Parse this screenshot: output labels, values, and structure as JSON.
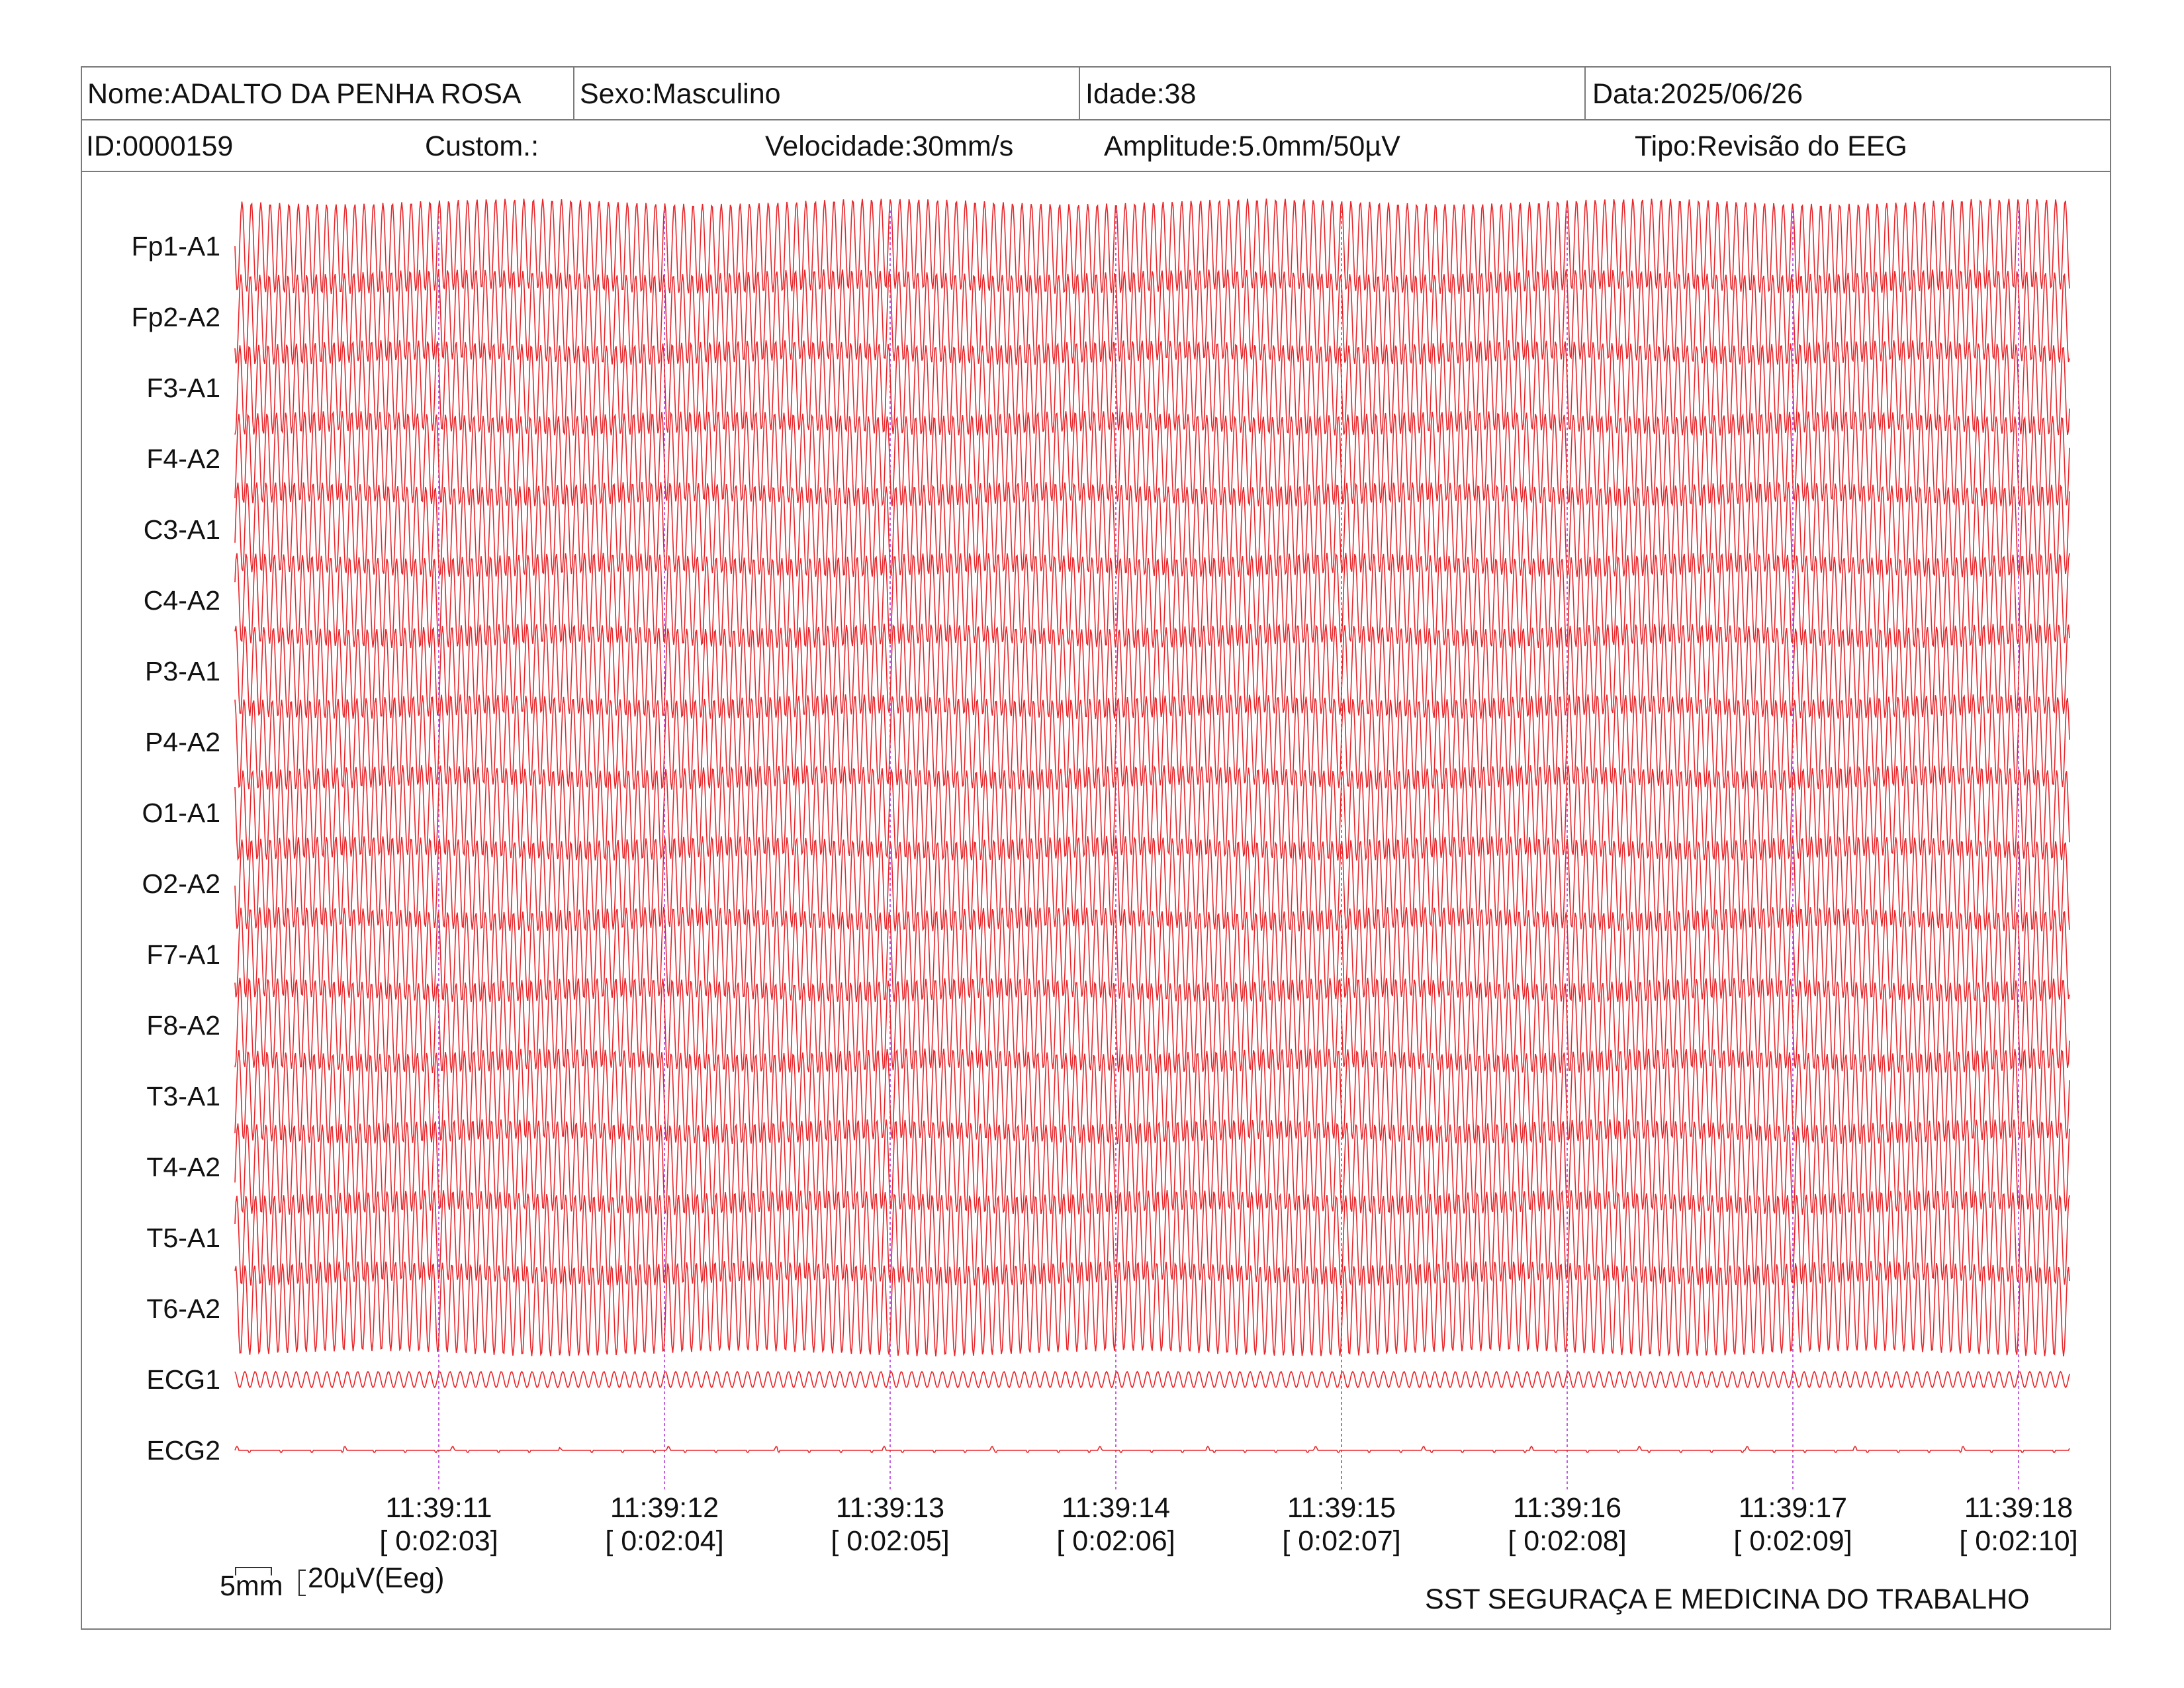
{
  "header": {
    "name": "Nome:ADALTO DA PENHA ROSA",
    "sex": "Sexo:Masculino",
    "age": "Idade:38",
    "date": "Data:2025/06/26",
    "id": "ID:0000159",
    "custom": "Custom.:",
    "speed": "Velocidade:30mm/s",
    "amplitude": "Amplitude:5.0mm/50µV",
    "type": "Tipo:Revisão do EEG"
  },
  "channels": [
    "Fp1-A1",
    "Fp2-A2",
    "F3-A1",
    "F4-A2",
    "C3-A1",
    "C4-A2",
    "P3-A1",
    "P4-A2",
    "O1-A1",
    "O2-A2",
    "F7-A1",
    "F8-A2",
    "T3-A1",
    "T4-A2",
    "T5-A1",
    "T6-A2",
    "ECG1",
    "ECG2"
  ],
  "time_marks": [
    {
      "clock": "11:39:11",
      "elapsed": "[ 0:02:03]"
    },
    {
      "clock": "11:39:12",
      "elapsed": "[ 0:02:04]"
    },
    {
      "clock": "11:39:13",
      "elapsed": "[ 0:02:05]"
    },
    {
      "clock": "11:39:14",
      "elapsed": "[ 0:02:06]"
    },
    {
      "clock": "11:39:15",
      "elapsed": "[ 0:02:07]"
    },
    {
      "clock": "11:39:16",
      "elapsed": "[ 0:02:08]"
    },
    {
      "clock": "11:39:17",
      "elapsed": "[ 0:02:09]"
    },
    {
      "clock": "11:39:18",
      "elapsed": "[ 0:02:10]"
    }
  ],
  "scale": {
    "time_label": "5mm",
    "amp_label": "20µV(Eeg)"
  },
  "footer": "SST SEGURAÇA E MEDICINA DO TRABALHO",
  "colors": {
    "trace": "#e8262a",
    "marker": "#c060e0",
    "border": "#7a7a7a"
  }
}
